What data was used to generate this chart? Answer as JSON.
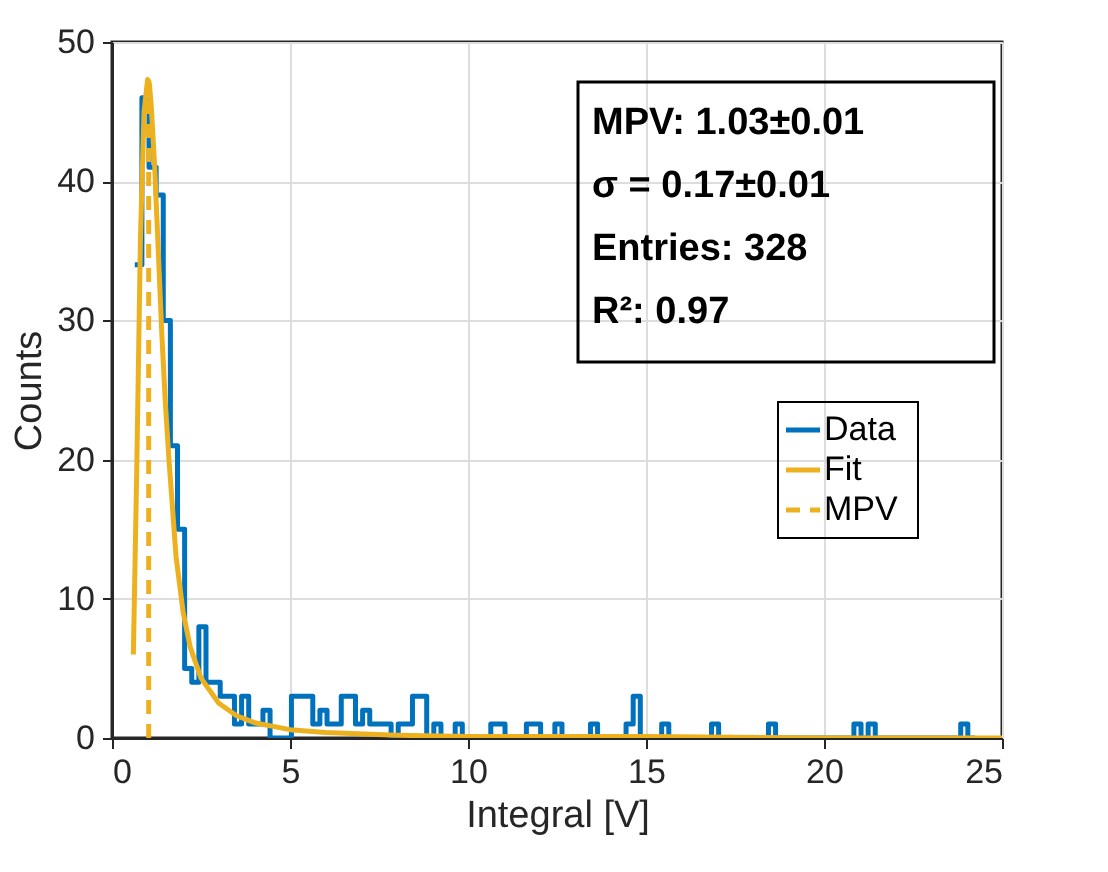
{
  "chart_data": {
    "type": "histogram",
    "xlabel": "Integral [V]",
    "ylabel": "Counts",
    "xlim": [
      0,
      25
    ],
    "xticks": [
      0,
      5,
      10,
      15,
      20,
      25
    ],
    "ylim": [
      0,
      50
    ],
    "yticks": [
      0,
      10,
      20,
      30,
      40,
      50
    ],
    "grid": true,
    "legend": "right",
    "annotations": [
      "MPV: 1.03±0.01",
      "σ = 0.17±0.01",
      "Entries: 328",
      "R²: 0.97"
    ],
    "series": [
      {
        "name": "Data",
        "color": "#0072bd",
        "bins": [
          0.64,
          0.84,
          1.04,
          1.24,
          1.44,
          1.64,
          1.84,
          2.04,
          2.24,
          2.44,
          2.64,
          2.84,
          3.04,
          3.24,
          3.44,
          3.64,
          3.84,
          4.04,
          4.24,
          4.44,
          4.64,
          4.84,
          5.04,
          5.24,
          5.44,
          5.64,
          5.84,
          6.04,
          6.24,
          6.44,
          6.64,
          6.84,
          7.04,
          7.24,
          7.44,
          7.64,
          7.84,
          8.04,
          8.24,
          8.44,
          8.64,
          8.84,
          9.04,
          9.24,
          9.44,
          9.64,
          9.84,
          10.04,
          10.24,
          10.44,
          10.64,
          10.84,
          11.04,
          11.24,
          11.44,
          11.64,
          11.84,
          12.04,
          12.24,
          12.44,
          12.64,
          12.84,
          13.04,
          13.24,
          13.44,
          13.64,
          13.84,
          14.04,
          14.24,
          14.44,
          14.64,
          14.84,
          15.04,
          15.24,
          15.44,
          15.64,
          15.84,
          16.04,
          16.24,
          16.44,
          16.64,
          16.84,
          17.04,
          17.24,
          17.44,
          17.64,
          17.84,
          18.04,
          18.24,
          18.44,
          18.64,
          18.84,
          19.04,
          19.24,
          19.44,
          19.64,
          19.84,
          20.04,
          20.24,
          20.44,
          20.64,
          20.84,
          21.04,
          21.24,
          21.44,
          21.64,
          21.84,
          22.04,
          22.24,
          22.44,
          22.64,
          22.84,
          23.04,
          23.24,
          23.44,
          23.64,
          23.84,
          24.04,
          24.24
        ],
        "values": [
          34,
          46,
          41,
          39,
          30,
          21,
          15,
          5,
          4,
          8,
          4,
          4,
          3,
          3,
          1,
          3,
          1,
          1,
          2,
          0,
          0,
          0,
          3,
          3,
          3,
          1,
          2,
          1,
          1,
          3,
          3,
          1,
          2,
          1,
          1,
          1,
          0,
          1,
          1,
          3,
          3,
          0,
          1,
          0,
          0,
          1,
          0,
          0,
          0,
          0,
          1,
          1,
          0,
          0,
          0,
          1,
          1,
          0,
          0,
          1,
          0,
          0,
          0,
          0,
          1,
          0,
          0,
          0,
          0,
          1,
          3,
          0,
          0,
          0,
          1,
          0,
          0,
          0,
          0,
          0,
          0,
          1,
          0,
          0,
          0,
          0,
          0,
          0,
          0,
          1,
          0,
          0,
          0,
          0,
          0,
          0,
          0,
          0,
          0,
          0,
          0,
          1,
          0,
          1,
          0,
          0,
          0,
          0,
          0,
          0,
          0,
          0,
          0,
          0,
          0,
          0,
          1,
          0
        ]
      },
      {
        "name": "Fit",
        "type": "line",
        "color": "#edb120",
        "line_style": "solid",
        "x": [
          0.6,
          0.7,
          0.8,
          0.9,
          1.0,
          1.05,
          1.1,
          1.2,
          1.3,
          1.4,
          1.5,
          1.6,
          1.8,
          2.0,
          2.2,
          2.5,
          3,
          3.5,
          4,
          5,
          6,
          8,
          10,
          15,
          20,
          25
        ],
        "values": [
          6,
          20,
          36,
          45,
          47.3,
          47,
          45.5,
          41,
          35,
          29,
          24,
          20,
          13,
          9,
          6.5,
          4.3,
          2.5,
          1.6,
          1.1,
          0.6,
          0.4,
          0.2,
          0.1,
          0.1,
          0,
          0
        ]
      },
      {
        "name": "MPV",
        "type": "line",
        "color": "#edb120",
        "line_style": "dashed",
        "x": [
          1.03,
          1.03
        ],
        "values": [
          0,
          47.3
        ]
      }
    ]
  }
}
